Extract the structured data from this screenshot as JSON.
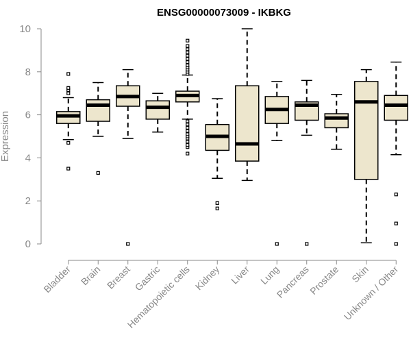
{
  "chart_data": {
    "type": "boxplot",
    "title": "ENSG00000073009 - IKBKG",
    "ylabel": "Expression",
    "xlabel": "",
    "ylim": [
      0,
      10
    ],
    "yticks": [
      0,
      2,
      4,
      6,
      8,
      10
    ],
    "grid": false,
    "legend": "none",
    "colors": {
      "box_fill": "#ede6cd",
      "box_stroke": "#000000",
      "median": "#000000",
      "axis": "#888888"
    },
    "categories": [
      "Bladder",
      "Brain",
      "Breast",
      "Gastric",
      "Hematopoietic cells",
      "Kidney",
      "Liver",
      "Lung",
      "Pancreas",
      "Prostate",
      "Skin",
      "Unknown / Other"
    ],
    "boxes": [
      {
        "category": "Bladder",
        "whisker_low": 4.85,
        "q1": 5.6,
        "median": 5.95,
        "q3": 6.15,
        "whisker_high": 6.8,
        "outliers": [
          3.5,
          4.7,
          7.0,
          7.15,
          7.25,
          7.9
        ]
      },
      {
        "category": "Brain",
        "whisker_low": 5.0,
        "q1": 5.7,
        "median": 6.45,
        "q3": 6.7,
        "whisker_high": 7.5,
        "outliers": [
          3.3
        ]
      },
      {
        "category": "Breast",
        "whisker_low": 4.9,
        "q1": 6.4,
        "median": 6.85,
        "q3": 7.35,
        "whisker_high": 8.1,
        "outliers": [
          0.0
        ]
      },
      {
        "category": "Gastric",
        "whisker_low": 5.2,
        "q1": 5.8,
        "median": 6.35,
        "q3": 6.65,
        "whisker_high": 7.0,
        "outliers": []
      },
      {
        "category": "Hematopoietic cells",
        "whisker_low": 5.8,
        "q1": 6.6,
        "median": 6.9,
        "q3": 7.1,
        "whisker_high": 7.85,
        "outliers": [
          4.2,
          4.5,
          4.6,
          4.75,
          4.9,
          5.0,
          5.1,
          5.25,
          5.4,
          5.55,
          5.7,
          7.9,
          8.0,
          8.1,
          8.2,
          8.3,
          8.45,
          8.6,
          8.75,
          8.9,
          9.05,
          9.2,
          9.45
        ]
      },
      {
        "category": "Kidney",
        "whisker_low": 3.05,
        "q1": 4.35,
        "median": 5.0,
        "q3": 5.55,
        "whisker_high": 6.75,
        "outliers": [
          1.65,
          1.9
        ]
      },
      {
        "category": "Liver",
        "whisker_low": 2.95,
        "q1": 3.85,
        "median": 4.65,
        "q3": 7.35,
        "whisker_high": 10.0,
        "outliers": []
      },
      {
        "category": "Lung",
        "whisker_low": 4.8,
        "q1": 5.6,
        "median": 6.25,
        "q3": 6.85,
        "whisker_high": 7.55,
        "outliers": [
          0.0
        ]
      },
      {
        "category": "Pancreas",
        "whisker_low": 5.05,
        "q1": 5.75,
        "median": 6.45,
        "q3": 6.6,
        "whisker_high": 7.6,
        "outliers": [
          0.0
        ]
      },
      {
        "category": "Prostate",
        "whisker_low": 4.4,
        "q1": 5.4,
        "median": 5.85,
        "q3": 6.05,
        "whisker_high": 6.95,
        "outliers": []
      },
      {
        "category": "Skin",
        "whisker_low": 0.05,
        "q1": 3.0,
        "median": 6.6,
        "q3": 7.55,
        "whisker_high": 8.1,
        "outliers": []
      },
      {
        "category": "Unknown / Other",
        "whisker_low": 4.15,
        "q1": 5.75,
        "median": 6.45,
        "q3": 6.9,
        "whisker_high": 8.45,
        "outliers": [
          0.0,
          0.95,
          2.3
        ]
      }
    ]
  }
}
